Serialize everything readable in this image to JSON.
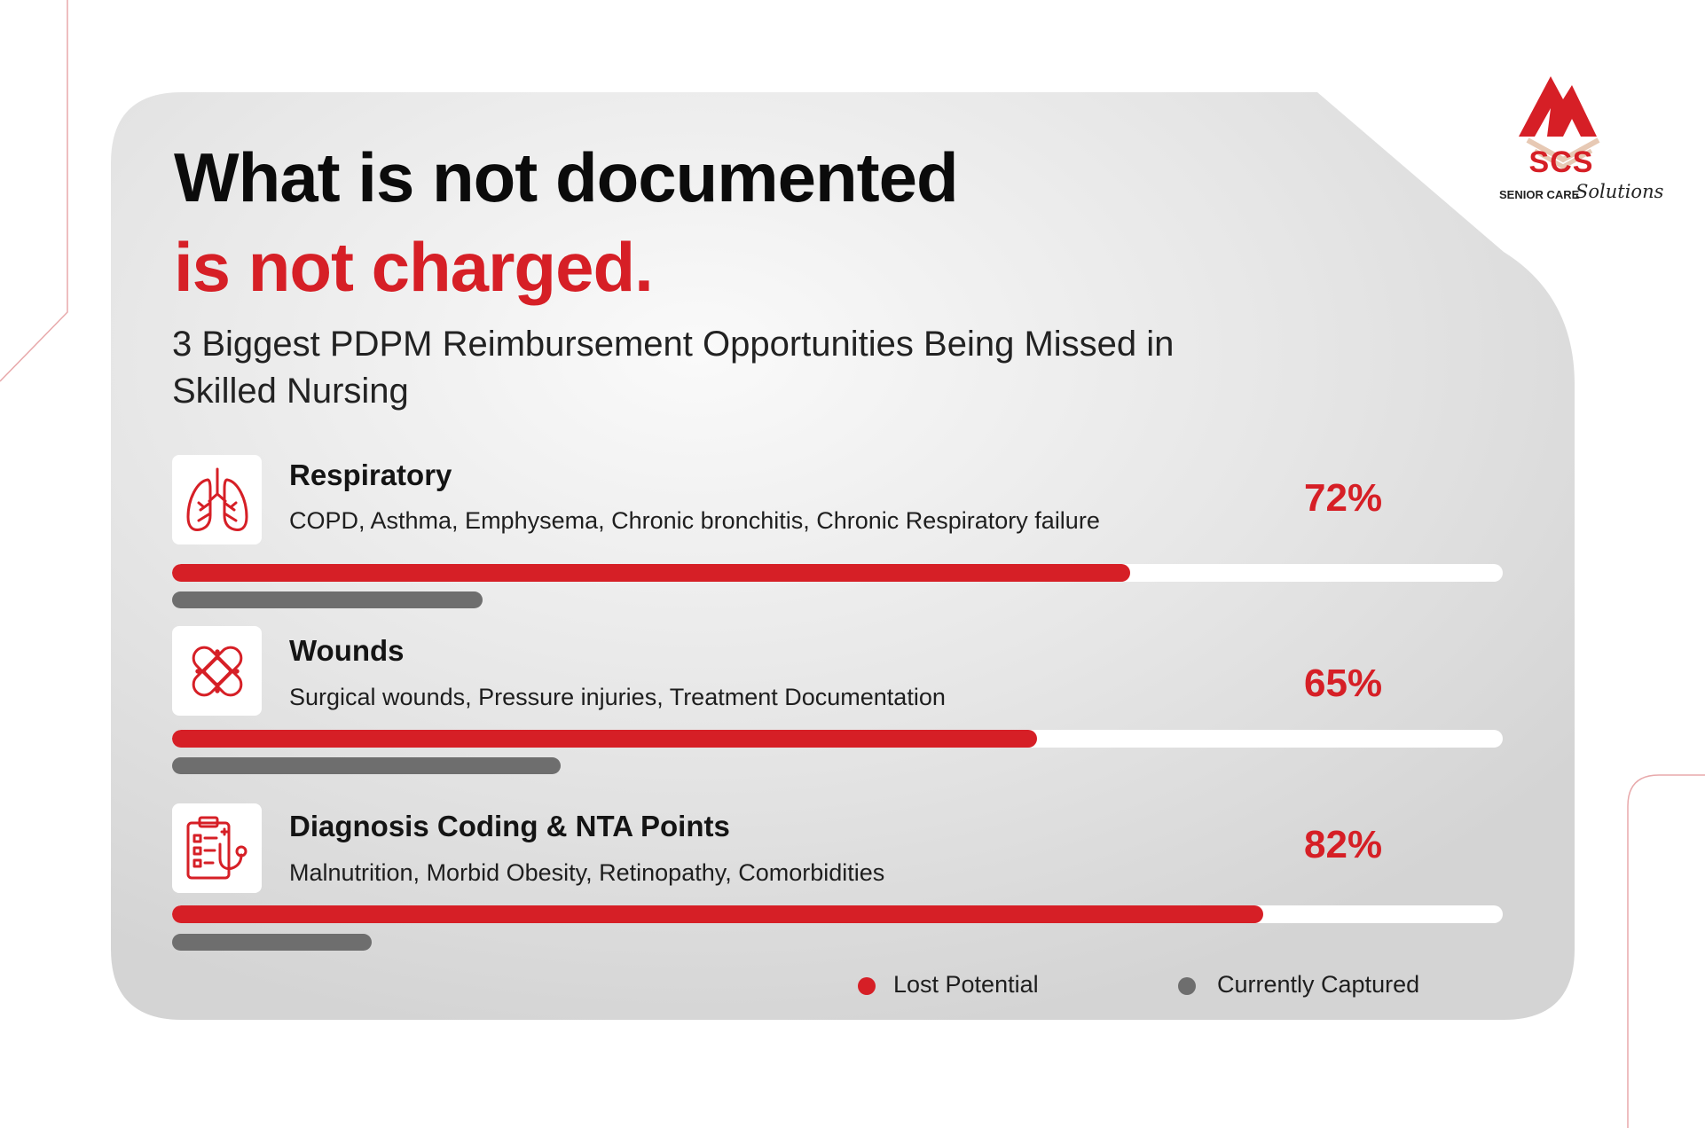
{
  "header": {
    "title_line1": "What is not documented",
    "title_line2": "is not charged.",
    "subtitle": "3 Biggest PDPM Reimbursement Opportunities Being Missed in Skilled Nursing"
  },
  "logo": {
    "text": "SCS",
    "subtitle": "SENIOR CARE",
    "script": "Solutions"
  },
  "colors": {
    "lost_potential": "#d61f26",
    "currently_captured": "#6e6e6e",
    "card_background": "#e0e0e0"
  },
  "categories": [
    {
      "name": "Respiratory",
      "description": "COPD, Asthma, Emphysema, Chronic bronchitis, Chronic Respiratory failure",
      "percent_label": "72%",
      "icon": "lungs-icon"
    },
    {
      "name": "Wounds",
      "description": "Surgical wounds, Pressure injuries, Treatment Documentation",
      "percent_label": "65%",
      "icon": "bandage-icon"
    },
    {
      "name": "Diagnosis Coding & NTA Points",
      "description": "Malnutrition, Morbid Obesity, Retinopathy, Comorbidities",
      "percent_label": "82%",
      "icon": "clipboard-stethoscope-icon"
    }
  ],
  "chart_data": {
    "type": "bar",
    "orientation": "horizontal",
    "categories": [
      "Respiratory",
      "Wounds",
      "Diagnosis Coding & NTA Points"
    ],
    "series": [
      {
        "name": "Lost Potential",
        "values": [
          72,
          65,
          82
        ]
      },
      {
        "name": "Currently Captured",
        "values": [
          28,
          35,
          18
        ]
      }
    ],
    "data_labels": [
      "72%",
      "65%",
      "82%"
    ],
    "xlim": [
      0,
      100
    ],
    "legend_position": "bottom-right"
  },
  "legend": {
    "lost_label": "Lost Potential",
    "captured_label": "Currently Captured"
  }
}
